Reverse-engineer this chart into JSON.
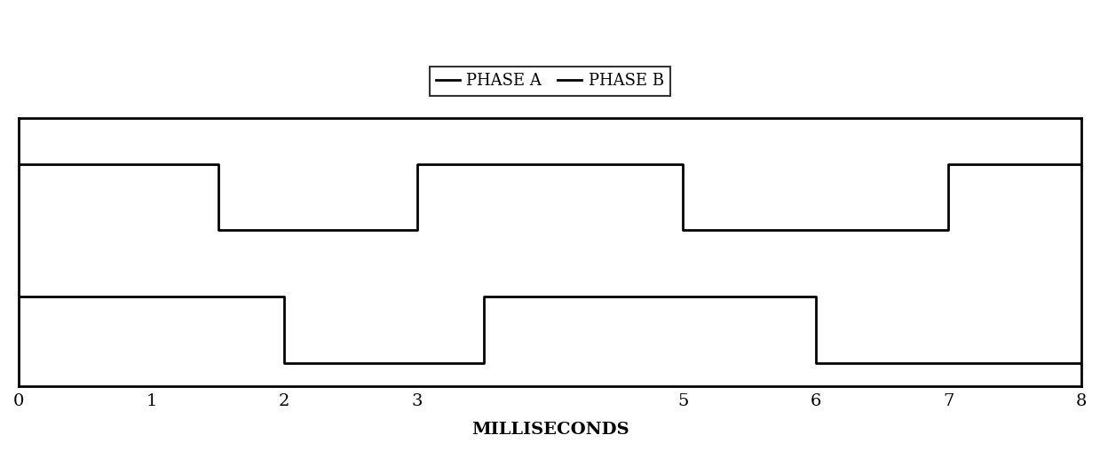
{
  "phase_a_x": [
    0,
    1.5,
    1.5,
    3,
    3,
    5,
    5,
    7,
    7,
    8
  ],
  "phase_a_y": [
    3,
    3,
    2,
    2,
    3,
    3,
    2,
    2,
    3,
    3
  ],
  "phase_b_x": [
    0,
    2,
    2,
    3.5,
    3.5,
    6,
    6,
    8
  ],
  "phase_b_y": [
    1,
    1,
    0,
    0,
    1,
    1,
    0,
    0
  ],
  "phase_a_label": "PHASE A",
  "phase_b_label": "PHASE B",
  "xlabel": "MILLISECONDS",
  "xlim": [
    0,
    8
  ],
  "ylim": [
    -0.35,
    3.7
  ],
  "xticks": [
    0,
    1,
    2,
    3,
    4,
    5,
    6,
    7,
    8
  ],
  "xtick_labels": [
    "0",
    "1",
    "2",
    "3",
    "",
    "5",
    "6",
    "7",
    "8"
  ],
  "line_color": "#000000",
  "line_width": 2.0,
  "background_color": "#ffffff",
  "legend_fontsize": 13,
  "xlabel_fontsize": 14
}
